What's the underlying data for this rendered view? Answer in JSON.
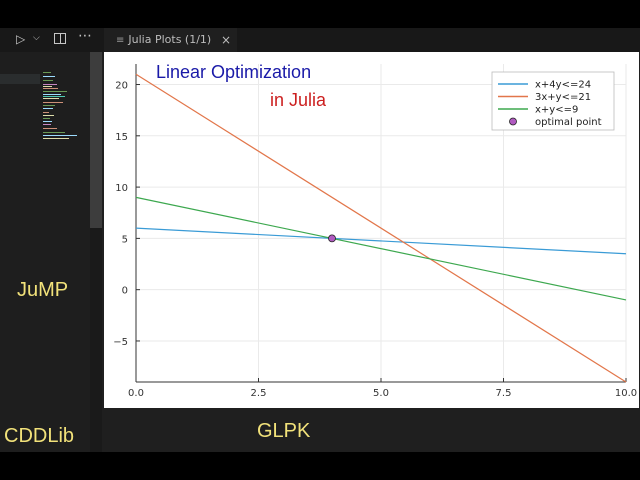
{
  "tab": {
    "label": "Julia Plots (1/1)",
    "icon": "preview-icon",
    "close": "×"
  },
  "plot_text": {
    "title_line1": "Linear Optimization",
    "title_line2": "in Julia",
    "title_line1_color": "#1a1aa8",
    "title_line2_color": "#cc2020"
  },
  "overlay": {
    "jump": "JuMP",
    "cddlib": "CDDLib",
    "glpk": "GLPK",
    "color": "#f2e27a"
  },
  "chart_data": {
    "type": "line",
    "xlim": [
      0,
      10
    ],
    "ylim": [
      -9,
      22
    ],
    "xticks": [
      0,
      2.5,
      5,
      7.5,
      10
    ],
    "xtick_labels": [
      "0.0",
      "2.5",
      "5.0",
      "7.5",
      "10.0"
    ],
    "yticks": [
      -5,
      0,
      5,
      10,
      15,
      20
    ],
    "ytick_labels": [
      "−5",
      "0",
      "5",
      "10",
      "15",
      "20"
    ],
    "grid": true,
    "legend": "top-right",
    "series": [
      {
        "name": "x+4y<=24",
        "color": "#3a9bd6",
        "x": [
          0,
          10
        ],
        "y": [
          6,
          3.5
        ]
      },
      {
        "name": "3x+y<=21",
        "color": "#e2764a",
        "x": [
          0,
          10
        ],
        "y": [
          21,
          -9
        ]
      },
      {
        "name": "x+y<=9",
        "color": "#3da84f",
        "x": [
          0,
          10
        ],
        "y": [
          9,
          -1
        ]
      }
    ],
    "point": {
      "name": "optimal point",
      "color": "#b05ac0",
      "x": 4,
      "y": 5
    }
  }
}
